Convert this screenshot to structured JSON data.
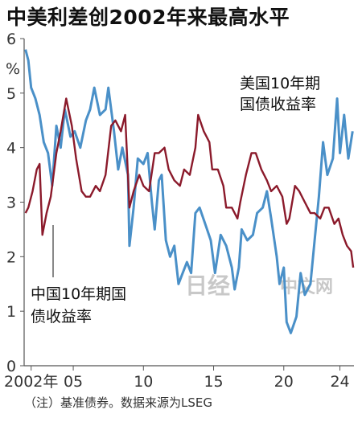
{
  "title": "中美利差创2002年来最高水平",
  "note": "（注）基准债券。数据来源为LSEG",
  "watermark": {
    "logo_text": "日经",
    "text": "中文网"
  },
  "chart_data": {
    "type": "line",
    "ylabel": "%",
    "ylim": [
      0,
      6
    ],
    "xlim": [
      2001.5,
      2025.0
    ],
    "y_ticks": [
      0,
      1,
      2,
      3,
      4,
      5,
      6
    ],
    "x_ticks": [
      {
        "value": 2002,
        "label": "2002年"
      },
      {
        "value": 2005,
        "label": "05"
      },
      {
        "value": 2010,
        "label": "10"
      },
      {
        "value": 2015,
        "label": "15"
      },
      {
        "value": 2020,
        "label": "20"
      },
      {
        "value": 2024,
        "label": "24"
      }
    ],
    "grid": false,
    "series": [
      {
        "name": "美国10年期国债收益率",
        "color": "#4a90c8",
        "points": [
          [
            2001.6,
            5.8
          ],
          [
            2001.8,
            5.6
          ],
          [
            2002.0,
            5.1
          ],
          [
            2002.3,
            4.9
          ],
          [
            2002.6,
            4.6
          ],
          [
            2002.9,
            4.1
          ],
          [
            2003.2,
            3.9
          ],
          [
            2003.5,
            3.3
          ],
          [
            2003.8,
            4.4
          ],
          [
            2004.1,
            4.0
          ],
          [
            2004.4,
            4.7
          ],
          [
            2004.8,
            4.2
          ],
          [
            2005.1,
            4.3
          ],
          [
            2005.5,
            4.0
          ],
          [
            2005.9,
            4.5
          ],
          [
            2006.2,
            4.7
          ],
          [
            2006.5,
            5.1
          ],
          [
            2006.9,
            4.6
          ],
          [
            2007.3,
            4.7
          ],
          [
            2007.5,
            5.1
          ],
          [
            2007.9,
            4.3
          ],
          [
            2008.2,
            3.6
          ],
          [
            2008.5,
            4.0
          ],
          [
            2008.9,
            3.5
          ],
          [
            2009.0,
            2.2
          ],
          [
            2009.3,
            2.9
          ],
          [
            2009.6,
            3.8
          ],
          [
            2010.0,
            3.7
          ],
          [
            2010.3,
            3.9
          ],
          [
            2010.6,
            3.0
          ],
          [
            2010.8,
            2.5
          ],
          [
            2011.1,
            3.4
          ],
          [
            2011.3,
            3.5
          ],
          [
            2011.6,
            2.3
          ],
          [
            2011.9,
            2.0
          ],
          [
            2012.2,
            2.2
          ],
          [
            2012.5,
            1.5
          ],
          [
            2012.8,
            1.7
          ],
          [
            2013.1,
            1.9
          ],
          [
            2013.4,
            1.7
          ],
          [
            2013.7,
            2.8
          ],
          [
            2014.0,
            2.9
          ],
          [
            2014.4,
            2.6
          ],
          [
            2014.8,
            2.3
          ],
          [
            2015.1,
            1.7
          ],
          [
            2015.5,
            2.4
          ],
          [
            2015.9,
            2.2
          ],
          [
            2016.3,
            1.8
          ],
          [
            2016.5,
            1.4
          ],
          [
            2016.8,
            1.8
          ],
          [
            2017.0,
            2.5
          ],
          [
            2017.4,
            2.3
          ],
          [
            2017.8,
            2.4
          ],
          [
            2018.1,
            2.8
          ],
          [
            2018.5,
            2.9
          ],
          [
            2018.8,
            3.2
          ],
          [
            2019.1,
            2.7
          ],
          [
            2019.5,
            2.0
          ],
          [
            2019.7,
            1.5
          ],
          [
            2020.0,
            1.8
          ],
          [
            2020.2,
            0.8
          ],
          [
            2020.5,
            0.6
          ],
          [
            2020.9,
            0.9
          ],
          [
            2021.2,
            1.7
          ],
          [
            2021.5,
            1.3
          ],
          [
            2021.9,
            1.5
          ],
          [
            2022.2,
            2.3
          ],
          [
            2022.5,
            3.1
          ],
          [
            2022.8,
            4.1
          ],
          [
            2023.1,
            3.5
          ],
          [
            2023.5,
            3.8
          ],
          [
            2023.8,
            4.9
          ],
          [
            2024.0,
            3.9
          ],
          [
            2024.3,
            4.6
          ],
          [
            2024.6,
            3.8
          ],
          [
            2024.9,
            4.3
          ]
        ]
      },
      {
        "name": "中国10年期国债收益率",
        "color": "#8b1a2b",
        "points": [
          [
            2001.6,
            2.8
          ],
          [
            2001.8,
            2.9
          ],
          [
            2002.1,
            3.2
          ],
          [
            2002.4,
            3.6
          ],
          [
            2002.6,
            3.7
          ],
          [
            2002.8,
            2.4
          ],
          [
            2003.1,
            2.8
          ],
          [
            2003.4,
            3.1
          ],
          [
            2003.8,
            3.9
          ],
          [
            2004.1,
            4.3
          ],
          [
            2004.5,
            4.9
          ],
          [
            2004.9,
            4.4
          ],
          [
            2005.2,
            3.8
          ],
          [
            2005.6,
            3.2
          ],
          [
            2005.9,
            3.1
          ],
          [
            2006.2,
            3.1
          ],
          [
            2006.6,
            3.3
          ],
          [
            2006.9,
            3.2
          ],
          [
            2007.3,
            3.5
          ],
          [
            2007.7,
            4.4
          ],
          [
            2008.0,
            4.5
          ],
          [
            2008.4,
            4.3
          ],
          [
            2008.7,
            4.6
          ],
          [
            2009.0,
            2.9
          ],
          [
            2009.3,
            3.2
          ],
          [
            2009.7,
            3.5
          ],
          [
            2010.0,
            3.3
          ],
          [
            2010.4,
            3.2
          ],
          [
            2010.8,
            3.9
          ],
          [
            2011.1,
            3.9
          ],
          [
            2011.5,
            4.0
          ],
          [
            2011.8,
            3.6
          ],
          [
            2012.2,
            3.4
          ],
          [
            2012.6,
            3.3
          ],
          [
            2012.9,
            3.6
          ],
          [
            2013.3,
            3.5
          ],
          [
            2013.7,
            4.0
          ],
          [
            2013.9,
            4.6
          ],
          [
            2014.3,
            4.3
          ],
          [
            2014.7,
            4.1
          ],
          [
            2014.9,
            3.6
          ],
          [
            2015.3,
            3.6
          ],
          [
            2015.7,
            3.3
          ],
          [
            2015.9,
            2.9
          ],
          [
            2016.3,
            2.9
          ],
          [
            2016.7,
            2.7
          ],
          [
            2016.9,
            3.0
          ],
          [
            2017.3,
            3.5
          ],
          [
            2017.7,
            3.9
          ],
          [
            2018.0,
            3.9
          ],
          [
            2018.4,
            3.6
          ],
          [
            2018.8,
            3.4
          ],
          [
            2019.1,
            3.2
          ],
          [
            2019.5,
            3.3
          ],
          [
            2019.9,
            3.1
          ],
          [
            2020.2,
            2.6
          ],
          [
            2020.4,
            2.7
          ],
          [
            2020.8,
            3.3
          ],
          [
            2021.1,
            3.2
          ],
          [
            2021.5,
            3.0
          ],
          [
            2021.9,
            2.8
          ],
          [
            2022.2,
            2.8
          ],
          [
            2022.6,
            2.7
          ],
          [
            2022.9,
            2.9
          ],
          [
            2023.2,
            2.9
          ],
          [
            2023.6,
            2.6
          ],
          [
            2023.9,
            2.7
          ],
          [
            2024.2,
            2.4
          ],
          [
            2024.5,
            2.2
          ],
          [
            2024.8,
            2.1
          ],
          [
            2024.95,
            1.8
          ]
        ]
      }
    ],
    "annotations": [
      {
        "lines": [
          "美国10年期",
          "国债收益率"
        ]
      },
      {
        "lines": [
          "中国10年期国",
          "债收益率"
        ]
      }
    ]
  }
}
